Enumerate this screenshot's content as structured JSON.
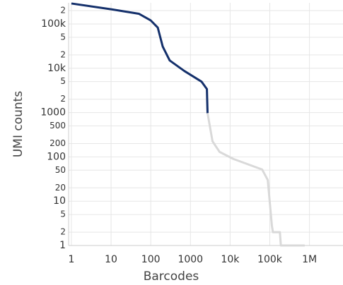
{
  "chart_data": {
    "type": "line",
    "xlabel": "Barcodes",
    "ylabel": "UMI counts",
    "xscale": "log",
    "yscale": "log",
    "grid": true,
    "xlim": [
      0.85,
      7000000
    ],
    "ylim": [
      1,
      300000
    ],
    "xticks": [
      1,
      10,
      100,
      1000,
      {
        "value": 10000,
        "label": "10k"
      },
      {
        "value": 100000,
        "label": "100k"
      },
      {
        "value": 1000000,
        "label": "1M"
      }
    ],
    "yticks": [
      1,
      2,
      5,
      10,
      20,
      50,
      100,
      200,
      500,
      1000,
      {
        "value": 2000,
        "label": "2"
      },
      {
        "value": 5000,
        "label": "5"
      },
      {
        "value": 10000,
        "label": "10k"
      },
      {
        "value": 20000,
        "label": "2"
      },
      {
        "value": 50000,
        "label": "5"
      },
      {
        "value": 100000,
        "label": "100k"
      },
      {
        "value": 200000,
        "label": "2"
      }
    ],
    "series": [
      {
        "color": "#14306b",
        "x": [
          1,
          10,
          50,
          100,
          150,
          200,
          300,
          700,
          1900,
          2600,
          2700
        ],
        "values": [
          290000,
          215000,
          170000,
          120000,
          83000,
          31000,
          15000,
          8700,
          5000,
          3400,
          970
        ]
      },
      {
        "color": "#d9d9d9",
        "x": [
          2700,
          3600,
          5400,
          12000,
          64000,
          89000,
          113000,
          120000,
          180000,
          190000,
          760000
        ],
        "values": [
          970,
          225,
          130,
          90,
          52,
          30,
          2.8,
          2,
          2,
          1,
          1
        ]
      }
    ]
  }
}
